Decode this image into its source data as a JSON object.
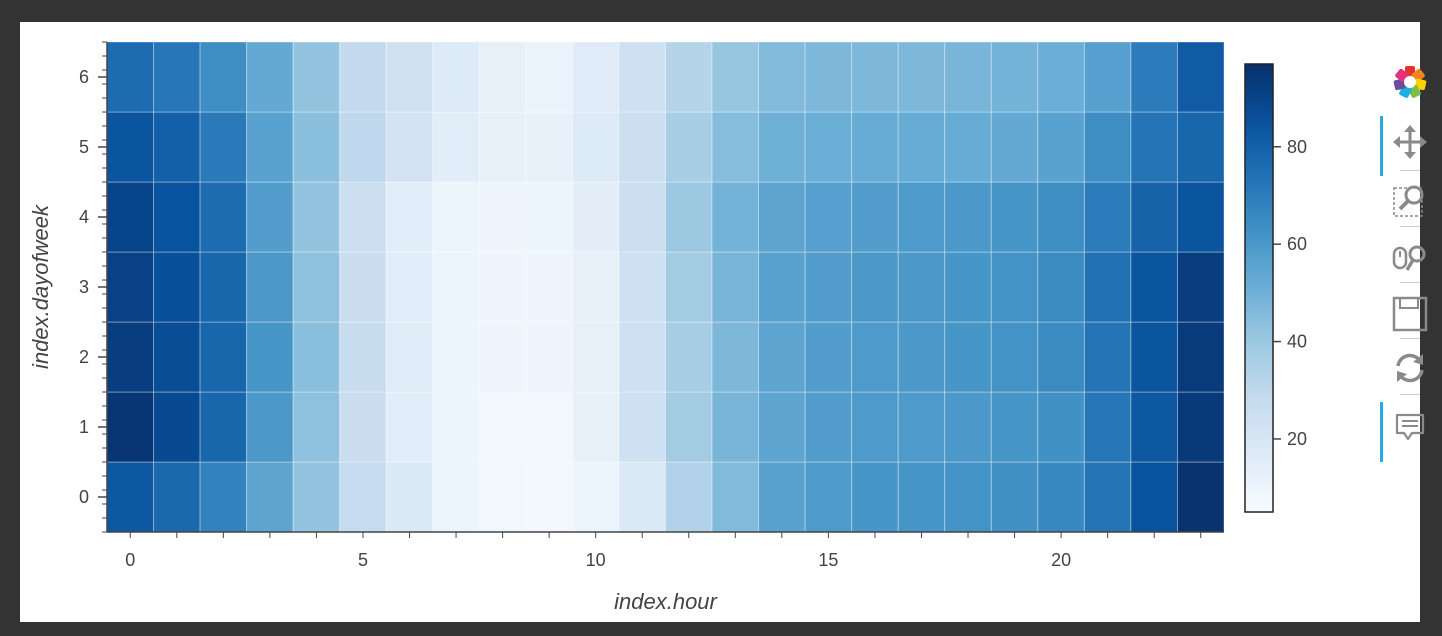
{
  "chart_data": {
    "type": "heatmap",
    "x_field": "index.hour",
    "y_field": "index.dayofweek",
    "xlabel": "index.hour",
    "ylabel": "index.dayofweek",
    "x_ticks": [
      0,
      5,
      10,
      15,
      20
    ],
    "y_ticks": [
      0,
      1,
      2,
      3,
      4,
      5,
      6
    ],
    "x_categories": [
      0,
      1,
      2,
      3,
      4,
      5,
      6,
      7,
      8,
      9,
      10,
      11,
      12,
      13,
      14,
      15,
      16,
      17,
      18,
      19,
      20,
      21,
      22,
      23
    ],
    "y_categories": [
      0,
      1,
      2,
      3,
      4,
      5,
      6
    ],
    "values": [
      [
        83,
        77,
        68,
        55,
        42,
        28,
        18,
        10,
        8,
        7,
        10,
        18,
        34,
        46,
        56,
        59,
        61,
        61,
        62,
        63,
        66,
        73,
        85,
        96
      ],
      [
        95,
        88,
        78,
        60,
        43,
        26,
        15,
        10,
        8,
        8,
        12,
        24,
        38,
        48,
        55,
        58,
        59,
        59,
        60,
        61,
        63,
        72,
        83,
        94
      ],
      [
        92,
        87,
        78,
        61,
        44,
        27,
        16,
        10,
        9,
        9,
        13,
        24,
        37,
        47,
        55,
        58,
        59,
        60,
        61,
        62,
        65,
        73,
        84,
        93
      ],
      [
        91,
        86,
        78,
        60,
        43,
        26,
        15,
        10,
        9,
        9,
        13,
        24,
        38,
        48,
        56,
        58,
        60,
        60,
        61,
        62,
        65,
        74,
        84,
        92
      ],
      [
        90,
        85,
        76,
        58,
        42,
        25,
        15,
        10,
        9,
        10,
        14,
        25,
        40,
        49,
        55,
        57,
        58,
        59,
        60,
        61,
        64,
        70,
        79,
        84
      ],
      [
        84,
        80,
        71,
        56,
        44,
        30,
        22,
        15,
        13,
        12,
        17,
        25,
        37,
        45,
        50,
        51,
        52,
        52,
        52,
        53,
        56,
        64,
        73,
        78
      ],
      [
        76,
        72,
        64,
        53,
        42,
        29,
        23,
        17,
        13,
        11,
        16,
        24,
        33,
        41,
        46,
        47,
        47,
        47,
        48,
        49,
        51,
        57,
        70,
        82
      ]
    ],
    "colorbar": {
      "ticks": [
        20,
        40,
        60,
        80
      ],
      "min": 5,
      "max": 97,
      "palette": "Blues"
    },
    "grid": true
  },
  "toolbar": {
    "logo_icon": "bokeh-logo-icon",
    "tools": [
      {
        "name": "pan-tool",
        "icon": "pan-icon",
        "active": true
      },
      {
        "name": "box-zoom-tool",
        "icon": "box-zoom-icon",
        "active": false
      },
      {
        "name": "wheel-zoom-tool",
        "icon": "wheel-zoom-icon",
        "active": false
      },
      {
        "name": "save-tool",
        "icon": "save-icon",
        "active": false
      },
      {
        "name": "reset-tool",
        "icon": "reset-icon",
        "active": false
      },
      {
        "name": "hover-tool",
        "icon": "hover-icon",
        "active": true
      }
    ]
  },
  "colors": {
    "background": "#333333",
    "panel": "#ffffff",
    "accent": "#26aae1",
    "axis": "#444444"
  }
}
